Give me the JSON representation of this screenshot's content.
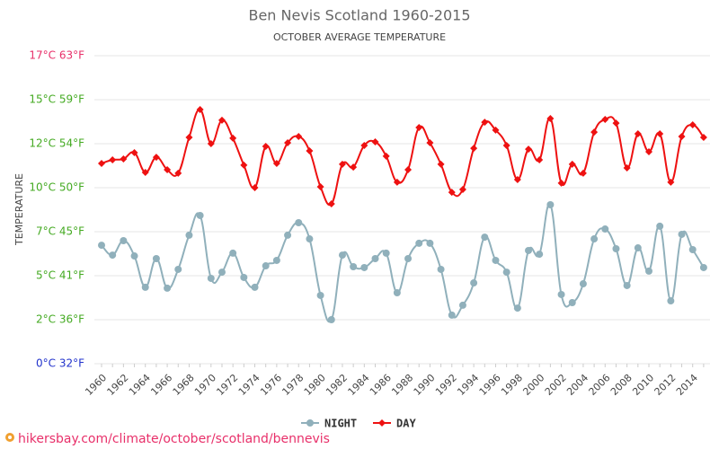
{
  "chart_data": {
    "type": "line",
    "title": "Ben Nevis Scotland 1960-2015",
    "subtitle": "OCTOBER AVERAGE TEMPERATURE",
    "y_label": "TEMPERATURE",
    "source": "hikersbay.com/climate/october/scotland/bennevis",
    "categories": [
      1960,
      null,
      1962,
      null,
      1964,
      null,
      1966,
      null,
      1968,
      null,
      1970,
      null,
      1972,
      null,
      1974,
      null,
      1976,
      null,
      1978,
      null,
      1980,
      null,
      1982,
      null,
      1984,
      null,
      1986,
      null,
      1988,
      null,
      1990,
      null,
      1992,
      null,
      1994,
      null,
      1996,
      null,
      1998,
      null,
      2000,
      null,
      2002,
      null,
      2004,
      null,
      2006,
      null,
      2008,
      null,
      2010,
      null,
      2012,
      null,
      2014,
      null
    ],
    "ylim": [
      0,
      17.5
    ],
    "yticks": [
      {
        "value": 0,
        "label": "0°C 32°F"
      },
      {
        "value": 2.5,
        "label": "2°C 36°F"
      },
      {
        "value": 5,
        "label": "5°C 41°F"
      },
      {
        "value": 7.5,
        "label": "7°C 45°F"
      },
      {
        "value": 10,
        "label": "10°C 50°F"
      },
      {
        "value": 12.5,
        "label": "12°C 54°F"
      },
      {
        "value": 15,
        "label": "15°C 59°F"
      },
      {
        "value": 17.5,
        "label": "17°C 63°F"
      }
    ],
    "ytick_colors": [
      "#2233cc",
      "#44aa22",
      "#44aa22",
      "#44aa22",
      "#44aa22",
      "#44aa22",
      "#44aa22",
      "#e8306a"
    ],
    "grid": true,
    "series": [
      {
        "name": "NIGHT",
        "color": "#90b0bb",
        "marker": "circle",
        "values": [
          6.73,
          6.17,
          6.99,
          6.12,
          4.34,
          5.97,
          4.29,
          5.36,
          7.3,
          8.42,
          4.85,
          5.2,
          6.28,
          4.9,
          4.34,
          5.56,
          5.87,
          7.3,
          8.01,
          7.09,
          3.88,
          2.5,
          6.17,
          5.51,
          5.46,
          5.97,
          6.28,
          4.03,
          5.97,
          6.84,
          6.84,
          5.36,
          2.76,
          3.32,
          4.59,
          7.19,
          5.87,
          5.2,
          3.16,
          6.43,
          6.22,
          9.03,
          3.93,
          3.47,
          4.54,
          7.09,
          7.65,
          6.53,
          4.44,
          6.58,
          5.26,
          7.81,
          3.57,
          7.35,
          6.48,
          5.46
        ]
      },
      {
        "name": "DAY",
        "color": "#ee1111",
        "marker": "diamond",
        "values": [
          11.38,
          11.58,
          11.63,
          11.99,
          10.87,
          11.73,
          11.02,
          10.82,
          12.86,
          14.44,
          12.5,
          13.83,
          12.81,
          11.28,
          10.0,
          12.35,
          11.38,
          12.55,
          12.91,
          12.09,
          10.05,
          9.08,
          11.33,
          11.17,
          12.4,
          12.6,
          11.79,
          10.31,
          11.02,
          13.42,
          12.55,
          11.33,
          9.74,
          9.9,
          12.24,
          13.72,
          13.27,
          12.4,
          10.46,
          12.19,
          11.58,
          13.93,
          10.26,
          11.33,
          10.82,
          13.16,
          13.88,
          13.67,
          11.12,
          13.06,
          12.04,
          13.06,
          10.31,
          12.91,
          13.57,
          12.86
        ]
      }
    ]
  }
}
